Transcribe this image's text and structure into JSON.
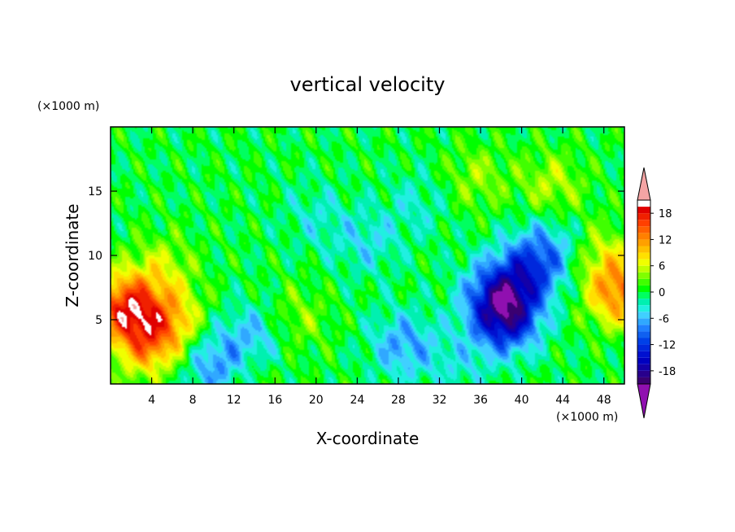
{
  "chart_data": {
    "type": "heatmap",
    "title": "vertical velocity",
    "xlabel": "X-coordinate",
    "ylabel": "Z-coordinate",
    "x_unit_label": "(×1000 m)",
    "y_unit_label": "(×1000 m)",
    "xlim": [
      0,
      50
    ],
    "ylim": [
      0,
      20
    ],
    "x_ticks": [
      4,
      8,
      12,
      16,
      20,
      24,
      28,
      32,
      36,
      40,
      44,
      48
    ],
    "y_ticks": [
      5,
      10,
      15
    ],
    "x_tick_labels": [
      "4",
      "8",
      "12",
      "16",
      "20",
      "24",
      "28",
      "32",
      "36",
      "40",
      "44",
      "48"
    ],
    "y_tick_labels": [
      "5",
      "10",
      "15"
    ],
    "colorbar": {
      "levels": [
        -21,
        -19.5,
        -18,
        -16.5,
        -15,
        -13.5,
        -12,
        -10.5,
        -9,
        -7.5,
        -6,
        -4.5,
        -3,
        -1.5,
        0,
        1.5,
        3,
        4.5,
        6,
        7.5,
        9,
        10.5,
        12,
        13.5,
        15,
        16.5,
        18,
        19.5,
        21
      ],
      "colors": [
        "#3a0070",
        "#28008c",
        "#1400a8",
        "#0000c0",
        "#0010d0",
        "#0028dc",
        "#0040e8",
        "#1060f0",
        "#2080ff",
        "#30a8ff",
        "#40d0ff",
        "#20f0e0",
        "#00f0b0",
        "#00ff60",
        "#00ff00",
        "#40ff00",
        "#80ff00",
        "#c0ff00",
        "#f0ff00",
        "#ffe000",
        "#ffc000",
        "#ffa000",
        "#ff8000",
        "#ff6000",
        "#ff4000",
        "#f02000",
        "#e00000",
        "#ffffff"
      ],
      "under_color": "#9010b0",
      "over_color": "#f4a4a4",
      "tick_values": [
        18,
        12,
        6,
        0,
        -6,
        -12,
        -18
      ],
      "tick_labels": [
        "18",
        "12",
        "6",
        "0",
        "-6",
        "-12",
        "-18"
      ]
    },
    "features": [
      {
        "x": 1.5,
        "z": 6.0,
        "w": 16
      },
      {
        "x": 3.5,
        "z": 3.0,
        "w": 10
      },
      {
        "x": 6.0,
        "z": 5.0,
        "w": 8
      },
      {
        "x": 5.0,
        "z": 9.0,
        "w": 5
      },
      {
        "x": 49.5,
        "z": 7.0,
        "w": 12
      },
      {
        "x": 48.0,
        "z": 10.0,
        "w": 5
      },
      {
        "x": 38.5,
        "z": 5.0,
        "w": -14
      },
      {
        "x": 37.5,
        "z": 7.0,
        "w": -10
      },
      {
        "x": 40.5,
        "z": 8.5,
        "w": -9
      },
      {
        "x": 42.5,
        "z": 10.5,
        "w": -6
      },
      {
        "x": 10.5,
        "z": 1.5,
        "w": -9
      },
      {
        "x": 14.0,
        "z": 3.5,
        "w": -7
      },
      {
        "x": 28.5,
        "z": 3.0,
        "w": -7
      },
      {
        "x": 20.0,
        "z": 13.0,
        "w": -3
      },
      {
        "x": 25.0,
        "z": 11.0,
        "w": -4
      },
      {
        "x": 30.0,
        "z": 14.0,
        "w": -3
      },
      {
        "x": 18.0,
        "z": 5.0,
        "w": 4
      },
      {
        "x": 13.0,
        "z": 1.5,
        "w": 5
      },
      {
        "x": 35.5,
        "z": 16.0,
        "w": 4
      },
      {
        "x": 43.0,
        "z": 15.5,
        "w": 5
      },
      {
        "x": 34.0,
        "z": 1.5,
        "w": -3
      }
    ]
  }
}
